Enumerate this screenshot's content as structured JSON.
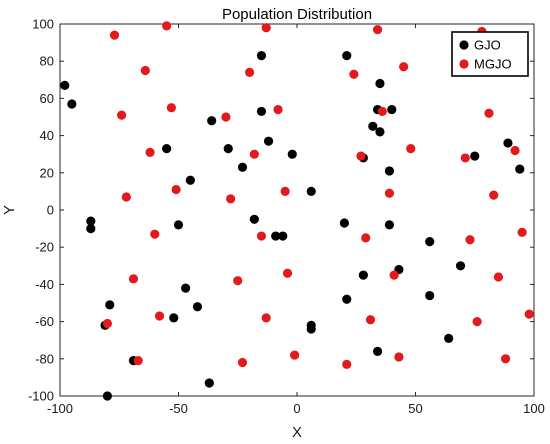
{
  "chart_data": {
    "type": "scatter",
    "title": "Population Distribution",
    "xlabel": "X",
    "ylabel": "Y",
    "xlim": [
      -100,
      100
    ],
    "ylim": [
      -100,
      100
    ],
    "xticks": [
      -100,
      -50,
      0,
      50,
      100
    ],
    "yticks": [
      -100,
      -80,
      -60,
      -40,
      -20,
      0,
      20,
      40,
      60,
      80,
      100
    ],
    "grid": false,
    "legend_position": "top-right",
    "series": [
      {
        "name": "GJO",
        "color": "#000000",
        "points": [
          [
            -98,
            67
          ],
          [
            -95,
            57
          ],
          [
            -55,
            33
          ],
          [
            -36,
            48
          ],
          [
            -15,
            83
          ],
          [
            -15,
            53
          ],
          [
            -12,
            37
          ],
          [
            -45,
            16
          ],
          [
            -29,
            33
          ],
          [
            -23,
            23
          ],
          [
            -2,
            30
          ],
          [
            6,
            10
          ],
          [
            -18,
            -5
          ],
          [
            -50,
            -8
          ],
          [
            -9,
            -14
          ],
          [
            -6,
            -14
          ],
          [
            -87,
            -6
          ],
          [
            -87,
            -10
          ],
          [
            -47,
            -42
          ],
          [
            -42,
            -52
          ],
          [
            -52,
            -58
          ],
          [
            -79,
            -51
          ],
          [
            -81,
            -62
          ],
          [
            -69,
            -81
          ],
          [
            -80,
            -100
          ],
          [
            -37,
            -93
          ],
          [
            6,
            -62
          ],
          [
            6,
            -64
          ],
          [
            21,
            83
          ],
          [
            35,
            68
          ],
          [
            34,
            54
          ],
          [
            40,
            54
          ],
          [
            32,
            45
          ],
          [
            35,
            42
          ],
          [
            39,
            21
          ],
          [
            28,
            28
          ],
          [
            20,
            -7
          ],
          [
            39,
            -8
          ],
          [
            28,
            -35
          ],
          [
            43,
            -32
          ],
          [
            21,
            -48
          ],
          [
            34,
            -76
          ],
          [
            56,
            -17
          ],
          [
            56,
            -46
          ],
          [
            64,
            -69
          ],
          [
            69,
            -30
          ],
          [
            75,
            29
          ],
          [
            89,
            36
          ],
          [
            94,
            22
          ]
        ]
      },
      {
        "name": "MGJO",
        "color": "#e31a1c",
        "points": [
          [
            -77,
            94
          ],
          [
            -55,
            99
          ],
          [
            -13,
            98
          ],
          [
            34,
            97
          ],
          [
            78,
            96
          ],
          [
            -64,
            75
          ],
          [
            -20,
            74
          ],
          [
            24,
            73
          ],
          [
            45,
            77
          ],
          [
            -74,
            51
          ],
          [
            -53,
            55
          ],
          [
            -30,
            50
          ],
          [
            -8,
            54
          ],
          [
            36,
            53
          ],
          [
            81,
            52
          ],
          [
            -62,
            31
          ],
          [
            -18,
            30
          ],
          [
            27,
            29
          ],
          [
            48,
            33
          ],
          [
            71,
            28
          ],
          [
            92,
            32
          ],
          [
            -72,
            7
          ],
          [
            -51,
            11
          ],
          [
            -28,
            6
          ],
          [
            -5,
            10
          ],
          [
            39,
            9
          ],
          [
            83,
            8
          ],
          [
            -60,
            -13
          ],
          [
            -15,
            -14
          ],
          [
            29,
            -15
          ],
          [
            73,
            -16
          ],
          [
            95,
            -12
          ],
          [
            -69,
            -37
          ],
          [
            -25,
            -38
          ],
          [
            -4,
            -34
          ],
          [
            41,
            -35
          ],
          [
            85,
            -36
          ],
          [
            -80,
            -61
          ],
          [
            -58,
            -57
          ],
          [
            -13,
            -58
          ],
          [
            31,
            -59
          ],
          [
            76,
            -60
          ],
          [
            98,
            -56
          ],
          [
            -67,
            -81
          ],
          [
            -23,
            -82
          ],
          [
            -1,
            -78
          ],
          [
            21,
            -83
          ],
          [
            43,
            -79
          ],
          [
            88,
            -80
          ]
        ]
      }
    ]
  }
}
